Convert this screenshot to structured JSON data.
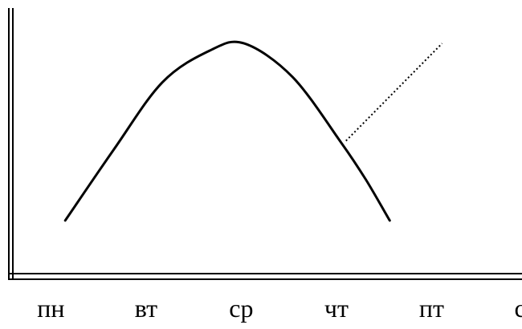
{
  "chart_data": {
    "type": "line",
    "categories": [
      "пн",
      "вт",
      "ср",
      "чт",
      "пт",
      "сб"
    ],
    "series": [
      {
        "style": "solid",
        "points": [
          {
            "x": 0.15,
            "y": 0.0
          },
          {
            "x": 0.66,
            "y": 0.4
          },
          {
            "x": 1.17,
            "y": 0.78
          },
          {
            "x": 1.67,
            "y": 0.96
          },
          {
            "x": 2.03,
            "y": 1.0
          },
          {
            "x": 2.54,
            "y": 0.81
          },
          {
            "x": 3.05,
            "y": 0.44
          },
          {
            "x": 3.31,
            "y": 0.23
          },
          {
            "x": 3.56,
            "y": 0.0
          }
        ]
      },
      {
        "style": "dotted",
        "points": [
          {
            "x": 3.1,
            "y": 0.45
          },
          {
            "x": 4.11,
            "y": 1.0
          }
        ]
      }
    ],
    "xlim": [
      -0.4,
      4.95
    ],
    "ylim": [
      -0.3,
      1.2
    ],
    "grid": false,
    "legend": "none",
    "axis_style": "double-line",
    "line_color": "#000000"
  }
}
